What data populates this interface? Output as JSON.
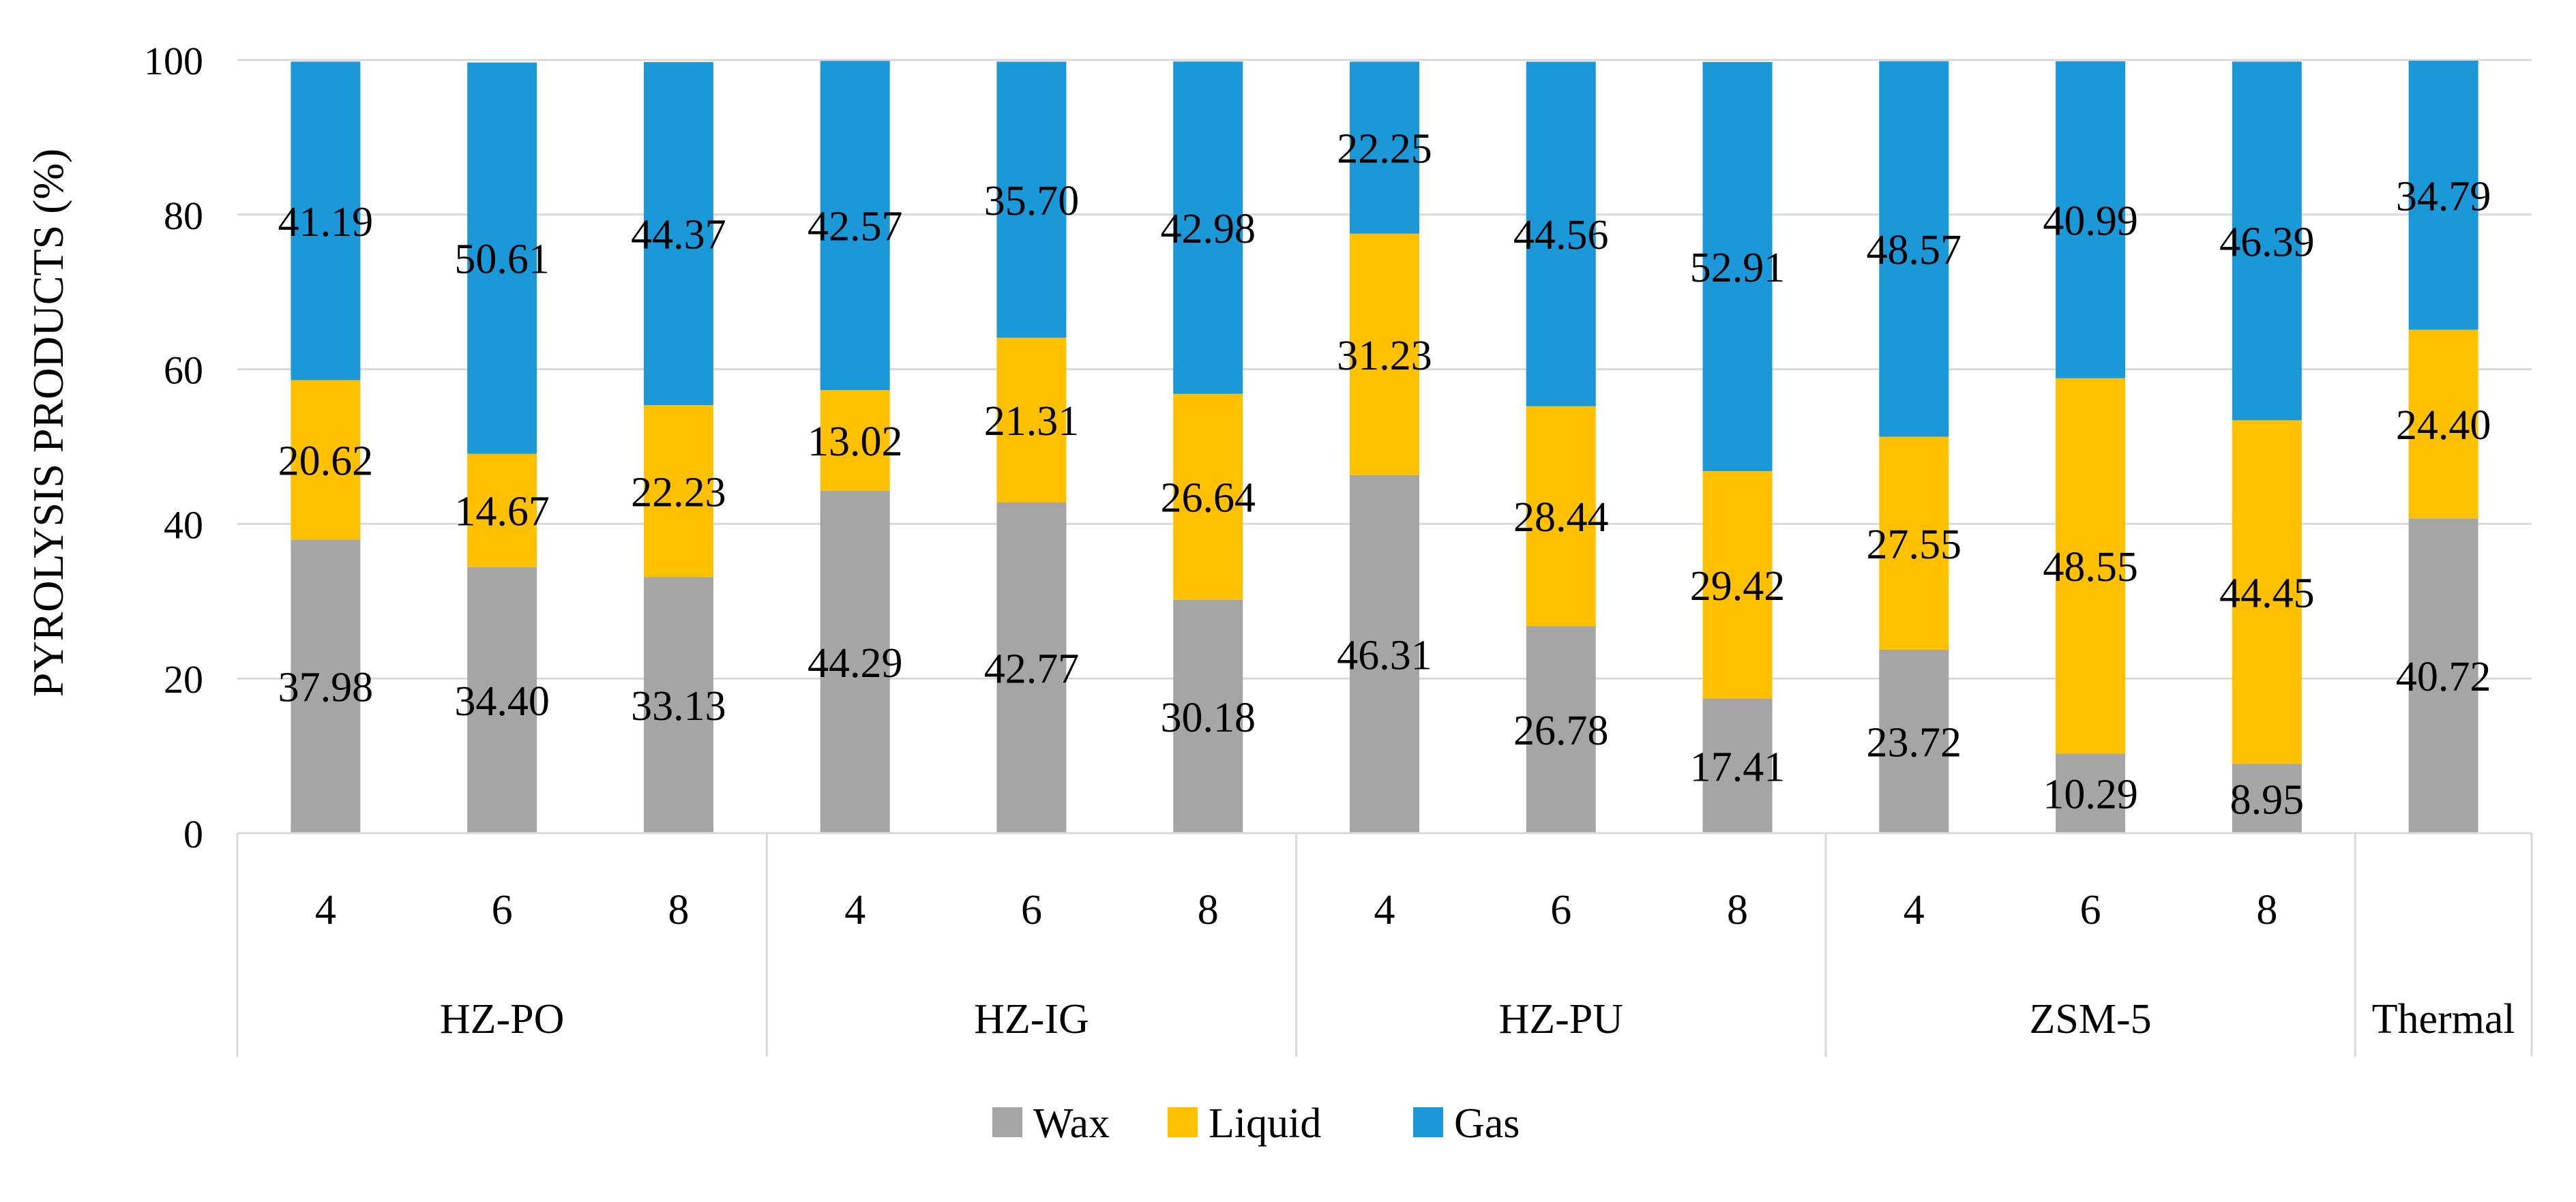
{
  "chart_data": {
    "type": "bar",
    "stacked": true,
    "ylabel": "PYROLYSIS PRODUCTS (%)",
    "ylim": [
      0,
      100
    ],
    "yticks": [
      0,
      20,
      40,
      60,
      80,
      100
    ],
    "grid": true,
    "legend_position": "bottom",
    "groups": [
      {
        "label": "HZ-PO",
        "categories": [
          "4",
          "6",
          "8"
        ]
      },
      {
        "label": "HZ-IG",
        "categories": [
          "4",
          "6",
          "8"
        ]
      },
      {
        "label": "HZ-PU",
        "categories": [
          "4",
          "6",
          "8"
        ]
      },
      {
        "label": "ZSM-5",
        "categories": [
          "4",
          "6",
          "8"
        ]
      },
      {
        "label": "Thermal",
        "categories": [
          ""
        ]
      }
    ],
    "series": [
      {
        "name": "Wax",
        "color": "#A5A5A5",
        "values": [
          37.98,
          34.4,
          33.13,
          44.29,
          42.77,
          30.18,
          46.31,
          26.78,
          17.41,
          23.72,
          10.29,
          8.95,
          40.72
        ],
        "labels": [
          "37.98",
          "34.40",
          "33.13",
          "44.29",
          "42.77",
          "30.18",
          "46.31",
          "26.78",
          "17.41",
          "23.72",
          "10.29",
          "8.95",
          "40.72"
        ]
      },
      {
        "name": "Liquid",
        "color": "#FFC000",
        "values": [
          20.62,
          14.67,
          22.23,
          13.02,
          21.31,
          26.64,
          31.23,
          28.44,
          29.42,
          27.55,
          48.55,
          44.45,
          24.4
        ],
        "labels": [
          "20.62",
          "14.67",
          "22.23",
          "13.02",
          "21.31",
          "26.64",
          "31.23",
          "28.44",
          "29.42",
          "27.55",
          "48.55",
          "44.45",
          "24.40"
        ]
      },
      {
        "name": "Gas",
        "color": "#1B98D8",
        "values": [
          41.19,
          50.61,
          44.37,
          42.57,
          35.7,
          42.98,
          22.25,
          44.56,
          52.91,
          48.57,
          40.99,
          46.39,
          34.79
        ],
        "labels": [
          "41.19",
          "50.61",
          "44.37",
          "42.57",
          "35.70",
          "42.98",
          "22.25",
          "44.56",
          "52.91",
          "48.57",
          "40.99",
          "46.39",
          "34.79"
        ]
      }
    ]
  }
}
